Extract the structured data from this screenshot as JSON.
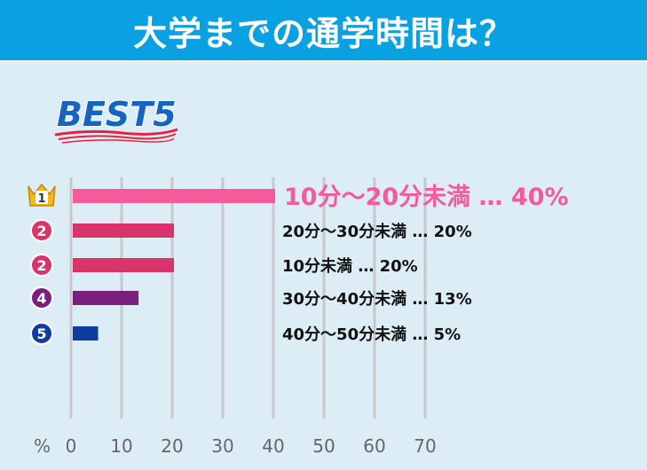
{
  "header": {
    "title": "大学までの通学時間は？"
  },
  "badge": {
    "text": "BEST5"
  },
  "chart_data": {
    "type": "bar",
    "orientation": "horizontal",
    "xlabel": "%",
    "xlim": [
      0,
      70
    ],
    "xticks": [
      0,
      10,
      20,
      30,
      40,
      50,
      60,
      70
    ],
    "grid": true,
    "items": [
      {
        "rank": "1",
        "label": "10分～20分未満",
        "value": 40,
        "display": "40%",
        "color": "#f55a9a",
        "rank_color": "#f5b81b",
        "highlight": true
      },
      {
        "rank": "2",
        "label": "20分～30分未満",
        "value": 20,
        "display": "20%",
        "color": "#d9336b",
        "rank_color": "#d9336b",
        "highlight": false
      },
      {
        "rank": "2",
        "label": "10分未満",
        "value": 20,
        "display": "20%",
        "color": "#d9336b",
        "rank_color": "#d9336b",
        "highlight": false
      },
      {
        "rank": "4",
        "label": "30分～40分未満",
        "value": 13,
        "display": "13%",
        "color": "#7a1f7e",
        "rank_color": "#7a1f7e",
        "highlight": false
      },
      {
        "rank": "5",
        "label": "40分～50分未満",
        "value": 5,
        "display": "5%",
        "color": "#0f3d9e",
        "rank_color": "#0f3d9e",
        "highlight": false
      }
    ]
  },
  "colors": {
    "header_bg": "#0aa1e3",
    "page_bg": "#dcedf6",
    "grid": "#c8c8c8",
    "badge_text": "#1565c0",
    "badge_underline": "#e8223b"
  }
}
